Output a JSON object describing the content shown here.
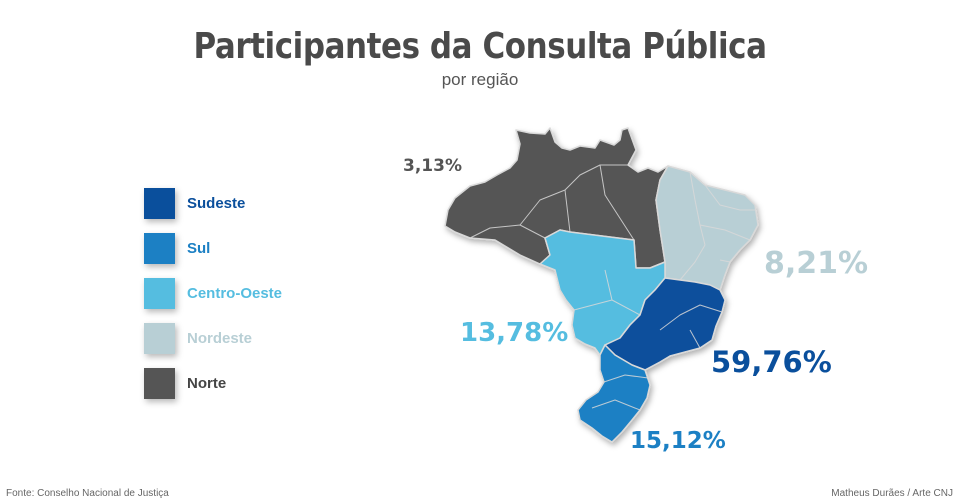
{
  "title": "Participantes da Consulta Pública",
  "subtitle": "por região",
  "legend": [
    {
      "label": "Sudeste",
      "color": "#0a4f9c"
    },
    {
      "label": "Sul",
      "color": "#1c80c4"
    },
    {
      "label": "Centro-Oeste",
      "color": "#55bde0"
    },
    {
      "label": "Nordeste",
      "color": "#b8cfd5"
    },
    {
      "label": "Norte",
      "color": "#555555"
    }
  ],
  "regions": {
    "norte": {
      "name": "Norte",
      "value": "3,13%",
      "color": "#555555"
    },
    "nordeste": {
      "name": "Nordeste",
      "value": "8,21%",
      "color": "#b8cfd5"
    },
    "centro_oeste": {
      "name": "Centro-Oeste",
      "value": "13,78%",
      "color": "#55bde0"
    },
    "sudeste": {
      "name": "Sudeste",
      "value": "59,76%",
      "color": "#0a4f9c"
    },
    "sul": {
      "name": "Sul",
      "value": "15,12%",
      "color": "#1c80c4"
    }
  },
  "footer": {
    "source": "Fonte: Conselho Nacional de Justiça",
    "credit": "Matheus Durães / Arte CNJ"
  }
}
